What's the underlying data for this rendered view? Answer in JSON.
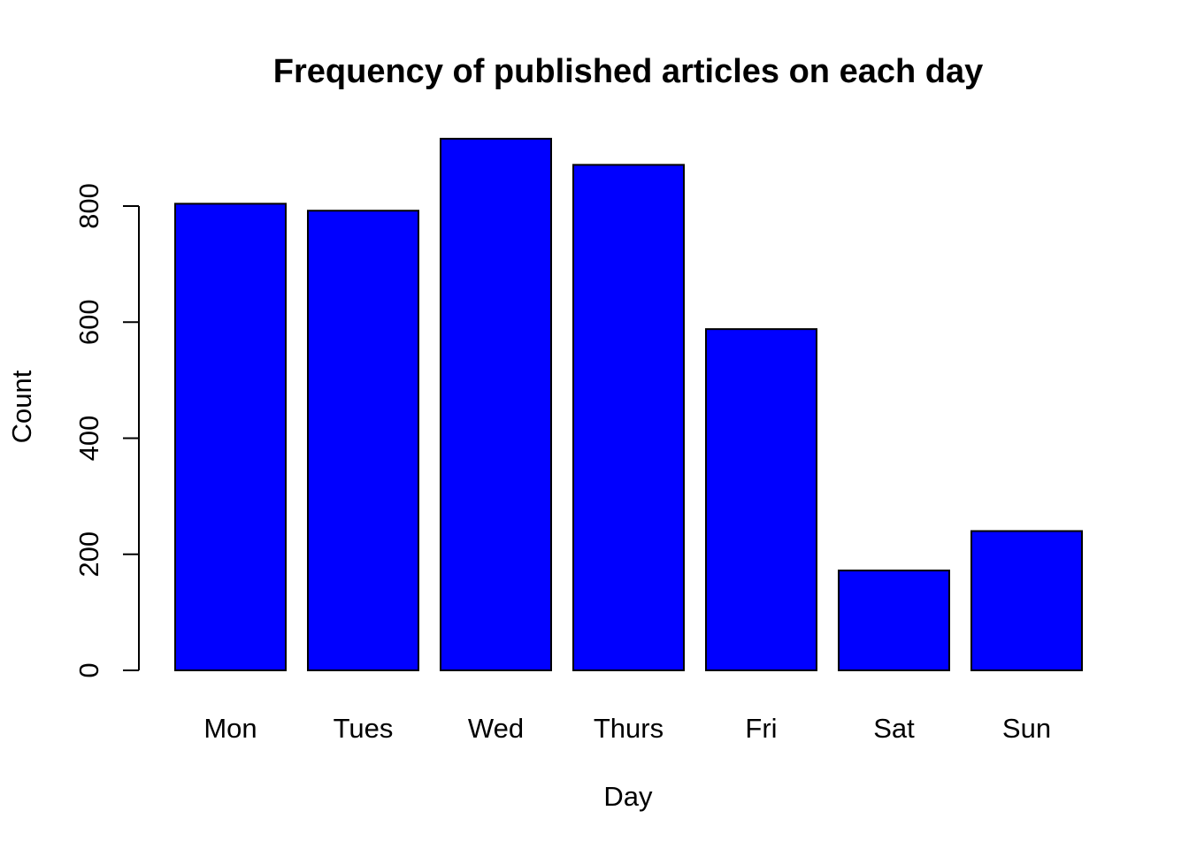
{
  "chart_data": {
    "type": "bar",
    "title": "Frequency of published articles on each day",
    "xlabel": "Day",
    "ylabel": "Count",
    "categories": [
      "Mon",
      "Tues",
      "Wed",
      "Thurs",
      "Fri",
      "Sat",
      "Sun"
    ],
    "values": [
      804,
      792,
      916,
      871,
      588,
      172,
      240
    ],
    "yticks": [
      0,
      200,
      400,
      600,
      800
    ],
    "ytick_labels": [
      "0",
      "200",
      "400",
      "600",
      "800"
    ],
    "ylim": [
      0,
      916
    ],
    "grid": false,
    "legend": "none",
    "colors": {
      "bar_fill": "#0000ff",
      "bar_stroke": "#000000",
      "axis": "#000000",
      "background": "#ffffff"
    }
  }
}
